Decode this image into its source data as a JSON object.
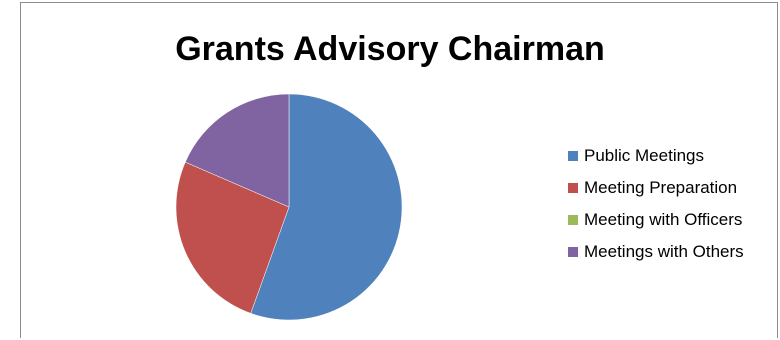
{
  "chart_data": {
    "type": "pie",
    "title": "Grants Advisory Chairman",
    "categories": [
      "Public Meetings",
      "Meeting Preparation",
      "Meeting with Officers",
      "Meetings with Others"
    ],
    "values": [
      55.5,
      26,
      0,
      18.5
    ],
    "colors": [
      "#4f81bd",
      "#c0504d",
      "#9bbb59",
      "#8064a2"
    ],
    "legend_position": "right"
  }
}
